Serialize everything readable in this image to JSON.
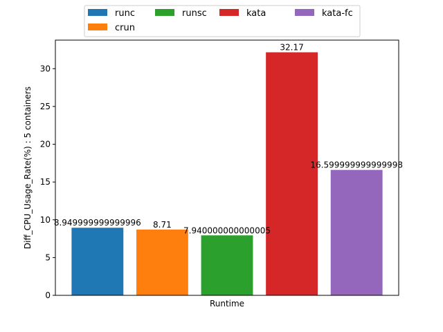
{
  "chart_data": {
    "type": "bar",
    "title": "",
    "xlabel": "Runtime",
    "ylabel": "Diff_CPU_Usage_Rate(%) : 5 containers",
    "ylim": [
      0,
      33.78
    ],
    "yticks": [
      0,
      5,
      10,
      15,
      20,
      25,
      30
    ],
    "grid": false,
    "legend_position": "top-center",
    "series": [
      {
        "name": "runc",
        "value": 8.949999999999996,
        "label": "8.949999999999996",
        "color": "#1f77b4"
      },
      {
        "name": "crun",
        "value": 8.71,
        "label": "8.71",
        "color": "#ff7f0e"
      },
      {
        "name": "runsc",
        "value": 7.940000000000005,
        "label": "7.940000000000005",
        "color": "#2ca02c"
      },
      {
        "name": "kata",
        "value": 32.17,
        "label": "32.17",
        "color": "#d62728"
      },
      {
        "name": "kata-fc",
        "value": 16.599999999999998,
        "label": "16.599999999999998",
        "color": "#9467bd"
      }
    ]
  }
}
